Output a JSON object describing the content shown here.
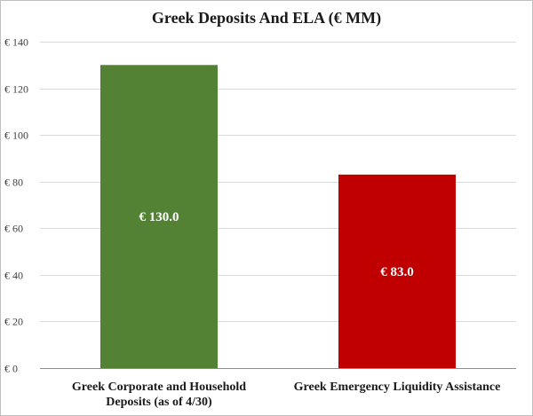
{
  "chart_data": {
    "type": "bar",
    "title": "Greek Deposits And ELA (€ MM)",
    "xlabel": "",
    "ylabel": "",
    "ylim": [
      0,
      140
    ],
    "y_ticks": [
      0,
      20,
      40,
      60,
      80,
      100,
      120,
      140
    ],
    "y_tick_prefix": "€ ",
    "grid": true,
    "legend": "none",
    "categories": [
      [
        "Greek Corporate and Household",
        "Deposits (as of 4/30)"
      ],
      [
        "Greek Emergency Liquidity Assistance"
      ]
    ],
    "values": [
      130.0,
      83.0
    ],
    "data_labels": [
      "€ 130.0",
      "€ 83.0"
    ],
    "colors": [
      "#548235",
      "#c00000"
    ]
  }
}
